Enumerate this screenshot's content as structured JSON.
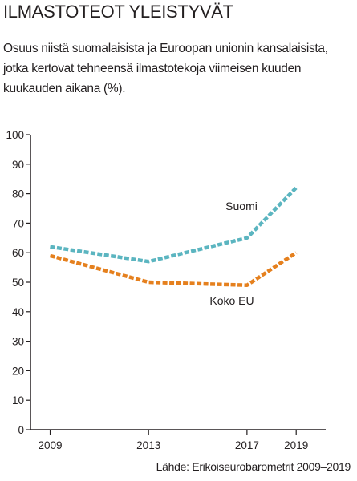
{
  "header": {
    "title": "ILMASTOTEOT YLEISTYVÄT",
    "subtitle": "Osuus niistä suomalaisista ja Euroopan unionin kansalaisista, jotka kertovat tehneensä ilmastotekoja viimeisen kuuden kuukauden aikana (%)."
  },
  "footer": {
    "source": "Lähde: Erikoiseurobarometrit 2009–2019"
  },
  "chart_data": {
    "type": "line",
    "x": [
      2009,
      2013,
      2017,
      2019
    ],
    "x_tick_labels": [
      "2009",
      "2013",
      "2017",
      "2019"
    ],
    "y_ticks": [
      0,
      10,
      20,
      30,
      40,
      50,
      60,
      70,
      80,
      90,
      100
    ],
    "y_tick_labels": [
      "0",
      "10",
      "20",
      "30",
      "40",
      "50",
      "60",
      "70",
      "80",
      "90",
      "100"
    ],
    "ylim": [
      0,
      100
    ],
    "xlim": [
      2008.2,
      2020.2
    ],
    "grid": false,
    "line_style": "dashed",
    "series": [
      {
        "name": "Suomi",
        "values": [
          62,
          57,
          65,
          82
        ],
        "color": "#5bb5c0"
      },
      {
        "name": "Koko EU",
        "values": [
          59,
          50,
          49,
          60
        ],
        "color": "#e5801e"
      }
    ],
    "axis_color": "#231f20"
  }
}
